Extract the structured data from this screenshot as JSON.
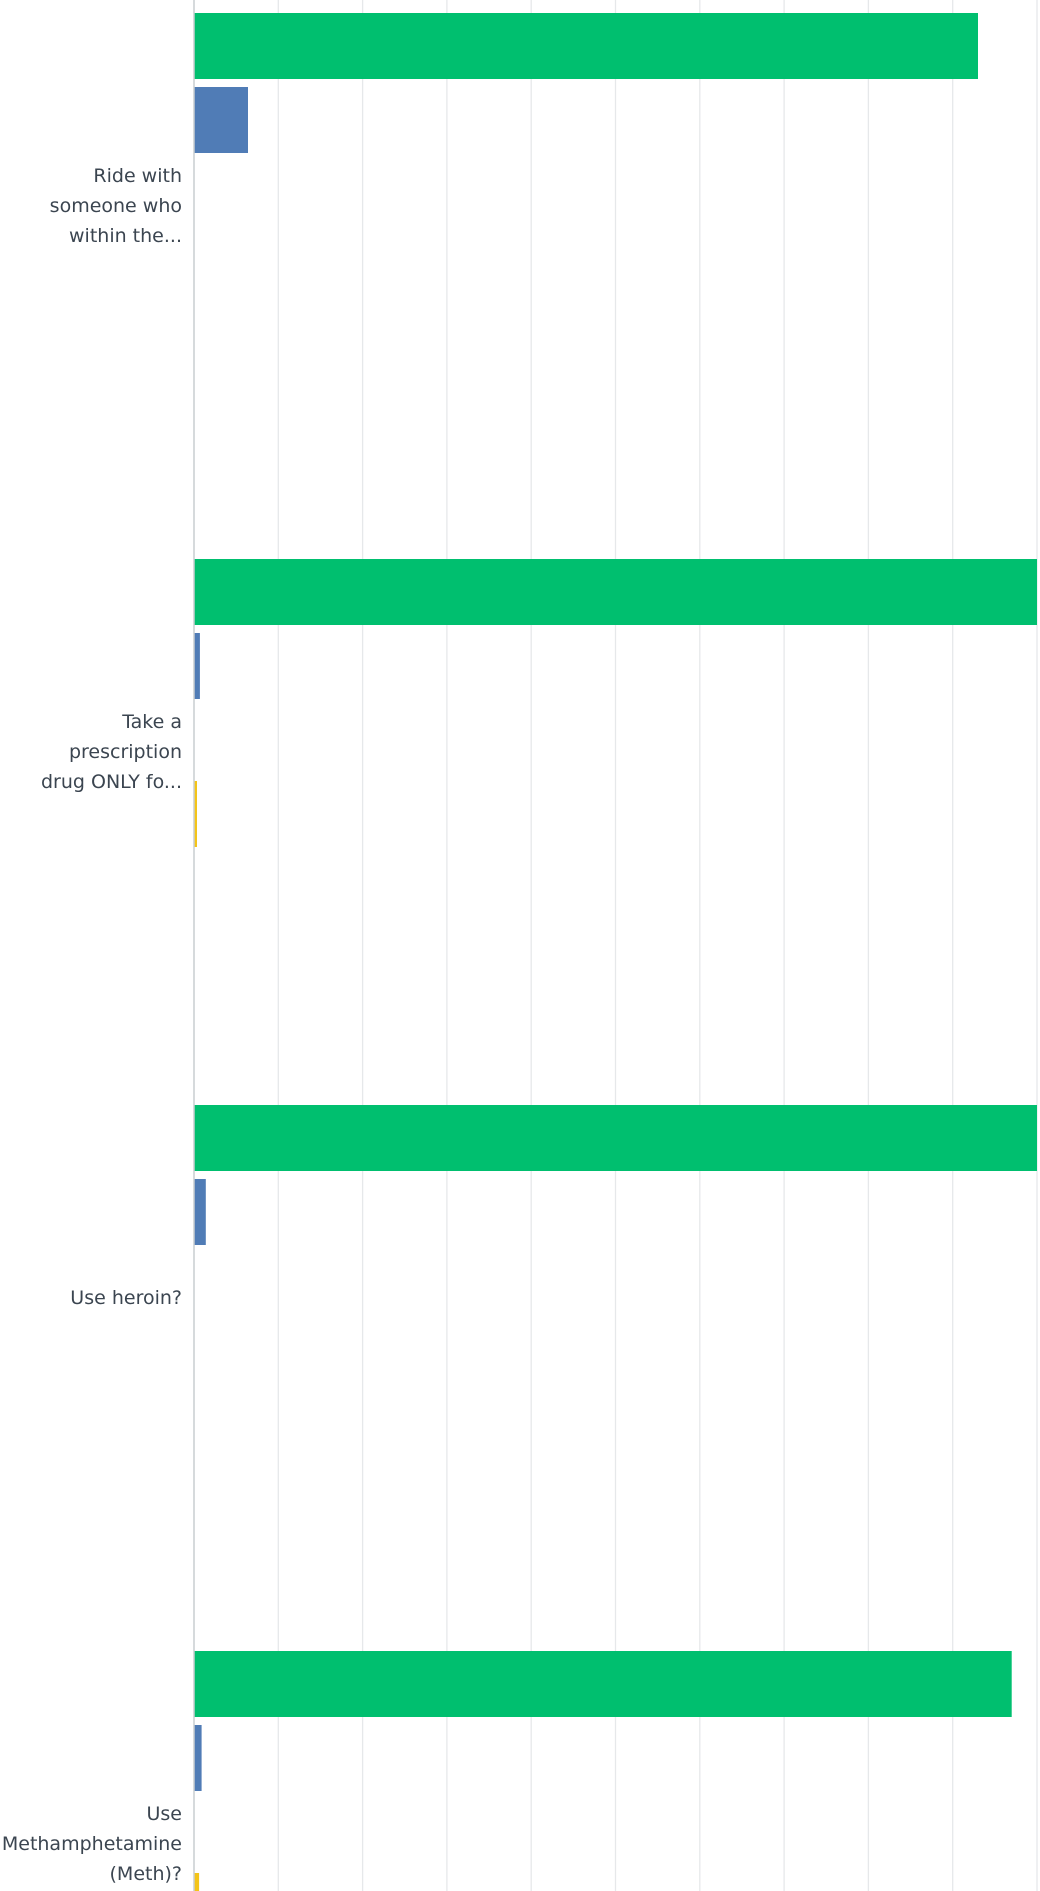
{
  "chart_data": {
    "type": "bar",
    "orientation": "horizontal",
    "categories": [
      [
        "Ride with",
        "someone who",
        "within the..."
      ],
      [
        "Take a",
        "prescription",
        "drug ONLY fo..."
      ],
      [
        "Use heroin?"
      ],
      [
        "Use",
        "Methamphetamine",
        "(Meth)?"
      ]
    ],
    "series": [
      {
        "color": "#00bf6f",
        "values": [
          93,
          100,
          100,
          97
        ]
      },
      {
        "color": "#507cb6",
        "values": [
          6.4,
          0.7,
          1.4,
          0.9
        ]
      },
      {
        "color": "#f79d6e",
        "values": [
          0,
          0,
          0,
          0
        ]
      },
      {
        "color": "#f4c418",
        "values": [
          0,
          0.3,
          0,
          0.6
        ]
      }
    ],
    "xlim": [
      0,
      100
    ],
    "grid": true,
    "colors": {
      "grid": "#e6e8ea",
      "axis": "#c9cdd1",
      "label": "#3b4550"
    }
  }
}
